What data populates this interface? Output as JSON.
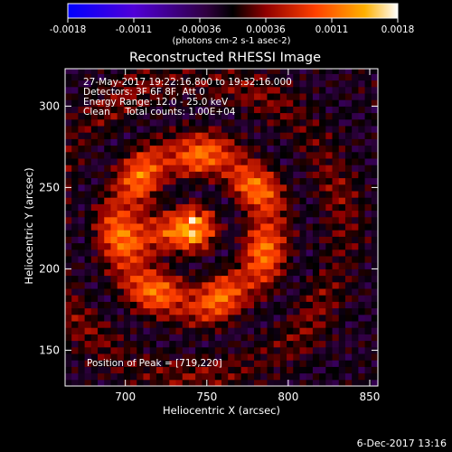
{
  "chart_data": {
    "type": "heatmap",
    "title": "Reconstructed RHESSI Image",
    "xlabel": "Heliocentric X (arcsec)",
    "ylabel": "Heliocentric Y (arcsec)",
    "xlim": [
      663,
      855
    ],
    "ylim": [
      128,
      323
    ],
    "x_ticks": [
      700,
      750,
      800,
      850
    ],
    "y_ticks": [
      150,
      200,
      250,
      300
    ],
    "colorbar": {
      "range": [
        -0.0018,
        0.0018
      ],
      "ticks": [
        "-0.0018",
        "-0.0011",
        "-0.00036",
        "0.00036",
        "0.0011",
        "0.0018"
      ],
      "unit_label": "(photons cm-2 s-1 asec-2)",
      "colormap": [
        "#0000ff",
        "#5000d8",
        "#300040",
        "#000000",
        "#900000",
        "#ff4000",
        "#ffb000",
        "#ffffff"
      ]
    },
    "annotations": {
      "time_range": "27-May-2017 19:22:16.800 to 19:32:16.000",
      "detectors": "Detectors: 3F 6F 8F, Att 0",
      "energy": "Energy Range: 12.0 - 25.0 keV",
      "clean": "Clean     Total counts: 1.00E+04",
      "peak": "Position of Peak = [719,220]"
    },
    "peak_position": [
      719,
      220
    ]
  },
  "footer": {
    "timestamp": "6-Dec-2017 13:16"
  }
}
